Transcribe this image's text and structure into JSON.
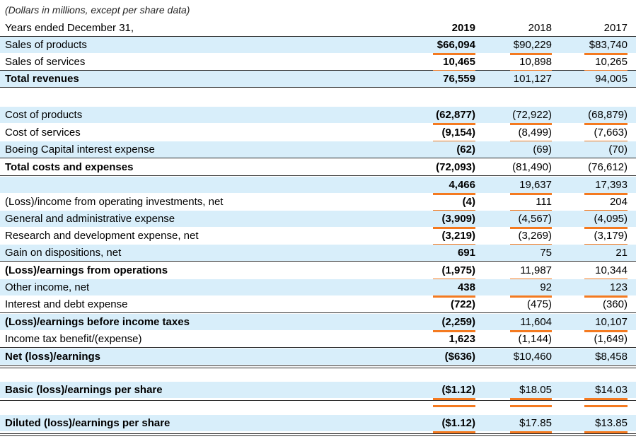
{
  "note": "(Dollars in millions, except per share data)",
  "header": {
    "label": "Years ended December 31,",
    "y2019": "2019",
    "y2018": "2018",
    "y2017": "2017"
  },
  "rows": [
    {
      "label": "Sales of products",
      "v2019": "$66,094",
      "v2018": "$90,229",
      "v2017": "$83,740"
    },
    {
      "label": "Sales of services",
      "v2019": "10,465",
      "v2018": "10,898",
      "v2017": "10,265"
    },
    {
      "label": "Total revenues",
      "v2019": "76,559",
      "v2018": "101,127",
      "v2017": "94,005"
    },
    {
      "label": "Cost of products",
      "v2019": "(62,877)",
      "v2018": "(72,922)",
      "v2017": "(68,879)"
    },
    {
      "label": "Cost of services",
      "v2019": "(9,154)",
      "v2018": "(8,499)",
      "v2017": "(7,663)"
    },
    {
      "label": "Boeing Capital interest expense",
      "v2019": "(62)",
      "v2018": "(69)",
      "v2017": "(70)"
    },
    {
      "label": "Total costs and expenses",
      "v2019": "(72,093)",
      "v2018": "(81,490)",
      "v2017": "(76,612)"
    },
    {
      "label": "",
      "v2019": "4,466",
      "v2018": "19,637",
      "v2017": "17,393"
    },
    {
      "label": "(Loss)/income from operating investments, net",
      "v2019": "(4)",
      "v2018": "111",
      "v2017": "204"
    },
    {
      "label": "General and administrative expense",
      "v2019": "(3,909)",
      "v2018": "(4,567)",
      "v2017": "(4,095)"
    },
    {
      "label": "Research and development expense, net",
      "v2019": "(3,219)",
      "v2018": "(3,269)",
      "v2017": "(3,179)"
    },
    {
      "label": "Gain on dispositions, net",
      "v2019": "691",
      "v2018": "75",
      "v2017": "21"
    },
    {
      "label": "(Loss)/earnings from operations",
      "v2019": "(1,975)",
      "v2018": "11,987",
      "v2017": "10,344"
    },
    {
      "label": "Other income, net",
      "v2019": "438",
      "v2018": "92",
      "v2017": "123"
    },
    {
      "label": "Interest and debt expense",
      "v2019": "(722)",
      "v2018": "(475)",
      "v2017": "(360)"
    },
    {
      "label": "(Loss)/earnings before income taxes",
      "v2019": "(2,259)",
      "v2018": "11,604",
      "v2017": "10,107"
    },
    {
      "label": "Income tax benefit/(expense)",
      "v2019": "1,623",
      "v2018": "(1,144)",
      "v2017": "(1,649)"
    },
    {
      "label": "Net (loss)/earnings",
      "v2019": "($636)",
      "v2018": "$10,460",
      "v2017": "$8,458"
    },
    {
      "label": "Basic (loss)/earnings per share",
      "v2019": "($1.12)",
      "v2018": "$18.05",
      "v2017": "$14.03"
    },
    {
      "label": "Diluted (loss)/earnings per share",
      "v2019": "($1.12)",
      "v2018": "$17.85",
      "v2017": "$13.85"
    }
  ],
  "colors": {
    "shade": "#d8eefa",
    "accent": "#f47a20",
    "rule": "#2a2a2a"
  }
}
